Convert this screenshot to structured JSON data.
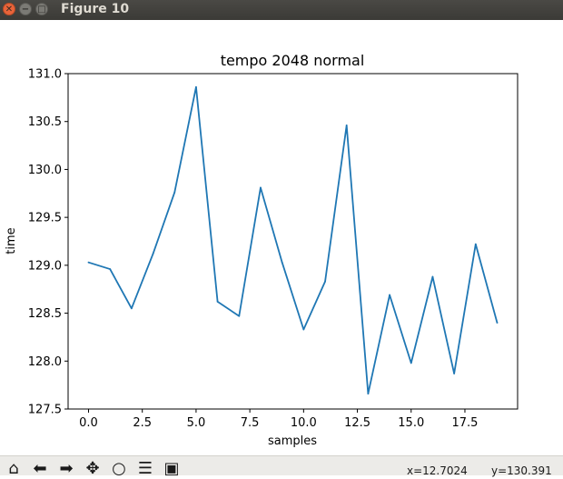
{
  "window": {
    "title": "Figure 10",
    "close_glyph": "✕",
    "minimize_glyph": "−",
    "maximize_glyph": "□"
  },
  "toolbar": {
    "buttons": [
      {
        "icon": "home-icon",
        "glyph": "⌂"
      },
      {
        "icon": "back-arrow-icon",
        "glyph": "⬅"
      },
      {
        "icon": "forward-arrow-icon",
        "glyph": "➡"
      },
      {
        "icon": "pan-icon",
        "glyph": "✥"
      },
      {
        "icon": "zoom-icon",
        "glyph": "○"
      },
      {
        "icon": "configure-subplots-icon",
        "glyph": "☰"
      },
      {
        "icon": "save-icon",
        "glyph": "▣"
      }
    ],
    "x_readout": "x=12.7024",
    "y_readout": "y=130.391"
  },
  "chart_data": {
    "type": "line",
    "title": "tempo 2048 normal",
    "xlabel": "samples",
    "ylabel": "time",
    "xlim": [
      -0.95,
      19.95
    ],
    "ylim": [
      127.5,
      131.0
    ],
    "xticks": [
      0.0,
      2.5,
      5.0,
      7.5,
      10.0,
      12.5,
      15.0,
      17.5
    ],
    "xtick_labels": [
      "0.0",
      "2.5",
      "5.0",
      "7.5",
      "10.0",
      "12.5",
      "15.0",
      "17.5"
    ],
    "yticks": [
      127.5,
      128.0,
      128.5,
      129.0,
      129.5,
      130.0,
      130.5,
      131.0
    ],
    "ytick_labels": [
      "127.5",
      "128.0",
      "128.5",
      "129.0",
      "129.5",
      "130.0",
      "130.5",
      "131.0"
    ],
    "grid": false,
    "line_color": "#1f77b4",
    "series": [
      {
        "x": [
          0,
          1,
          2,
          3,
          4,
          5,
          6,
          7,
          8,
          9,
          10,
          11,
          12,
          13,
          14,
          15,
          16,
          17,
          18,
          19
        ],
        "values": [
          129.03,
          128.96,
          128.55,
          129.12,
          129.76,
          130.86,
          128.62,
          128.47,
          129.81,
          129.03,
          128.33,
          128.83,
          130.46,
          127.66,
          128.69,
          127.98,
          128.88,
          127.87,
          129.22,
          128.4
        ]
      }
    ]
  }
}
